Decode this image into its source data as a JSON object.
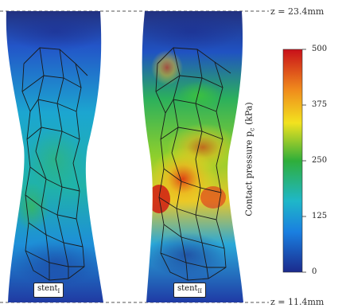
{
  "z_top": "z = 23.4mm",
  "z_bottom": "z = 11.4mm",
  "stent1_label": "stent",
  "stent1_sub": "I",
  "stent2_label": "stent",
  "stent2_sub": "II",
  "colorbar": {
    "title": "Contact pressure p",
    "title_sub": "c",
    "unit": " (kPa)",
    "ticks": [
      "500",
      "375",
      "250",
      "125",
      "0"
    ],
    "colors": [
      "#d61f14",
      "#f0d21e",
      "#2fae3a",
      "#18a6e6",
      "#1b2a8c"
    ]
  }
}
